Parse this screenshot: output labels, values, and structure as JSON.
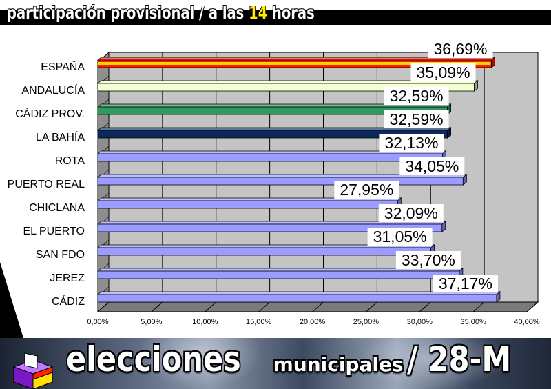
{
  "header": {
    "title_before": "participación provisional / a las ",
    "title_highlight": "14",
    "title_after": " horas"
  },
  "footer": {
    "word1": "elecciones",
    "word2": "municipales",
    "word3": "/ 28-M"
  },
  "icons": {
    "ballot": "ballot-box-icon"
  },
  "colors": {
    "wall": "#c4c4c4",
    "floor": "#7a7a7a",
    "espana": "#ff1a00",
    "andalucia": "#f2ffd0",
    "cadiz_prov": "#2e9a60",
    "la_bahia": "#0b2a5c",
    "municipio": "#9a9cff"
  },
  "chart_data": {
    "type": "bar",
    "orientation": "horizontal",
    "categories": [
      "ESPAÑA",
      "ANDALUCÍA",
      "CÁDIZ PROV.",
      "LA BAHÍA",
      "ROTA",
      "PUERTO REAL",
      "CHICLANA",
      "EL PUERTO",
      "SAN FDO",
      "JEREZ",
      "CÁDIZ"
    ],
    "values": [
      36.69,
      35.09,
      32.59,
      32.59,
      32.13,
      34.05,
      27.95,
      32.09,
      31.05,
      33.7,
      37.17
    ],
    "data_labels": [
      "36,69%",
      "35,09%",
      "32,59%",
      "32,59%",
      "32,13%",
      "34,05%",
      "27,95%",
      "32,09%",
      "31,05%",
      "33,70%",
      "37,17%"
    ],
    "bar_colors": [
      "#ff1a00",
      "#f2ffd0",
      "#2e9a60",
      "#0b2a5c",
      "#9a9cff",
      "#9a9cff",
      "#9a9cff",
      "#9a9cff",
      "#9a9cff",
      "#9a9cff",
      "#9a9cff"
    ],
    "xlim": [
      0,
      40
    ],
    "xticks": [
      0,
      5,
      10,
      15,
      20,
      25,
      30,
      35,
      40
    ],
    "xtick_labels": [
      "0,00%",
      "5,00%",
      "10,00%",
      "15,00%",
      "20,00%",
      "25,00%",
      "30,00%",
      "35,00%",
      "40,00%"
    ],
    "grid": true,
    "style": "3d",
    "legend": "none"
  }
}
